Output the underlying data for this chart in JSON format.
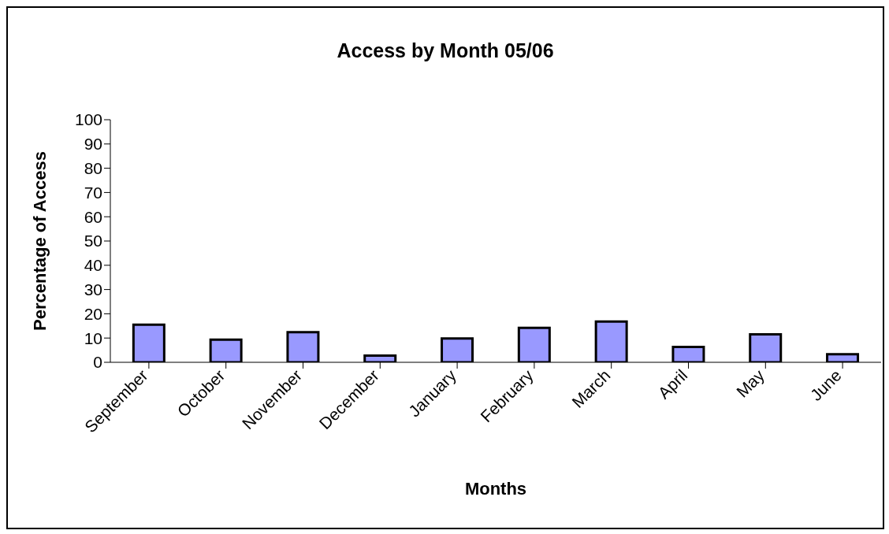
{
  "chart_data": {
    "type": "bar",
    "title": "Access by Month 05/06",
    "xlabel": "Months",
    "ylabel": "Percentage of Access",
    "categories": [
      "September",
      "October",
      "November",
      "December",
      "January",
      "February",
      "March",
      "April",
      "May",
      "June"
    ],
    "values": [
      15.5,
      9.3,
      12.4,
      2.8,
      9.8,
      14.2,
      16.8,
      6.3,
      11.5,
      3.3
    ],
    "color": "#9999ff",
    "ylim": [
      0,
      100
    ],
    "yticks": [
      0,
      10,
      20,
      30,
      40,
      50,
      60,
      70,
      80,
      90,
      100
    ],
    "grid": false,
    "legend": false
  }
}
